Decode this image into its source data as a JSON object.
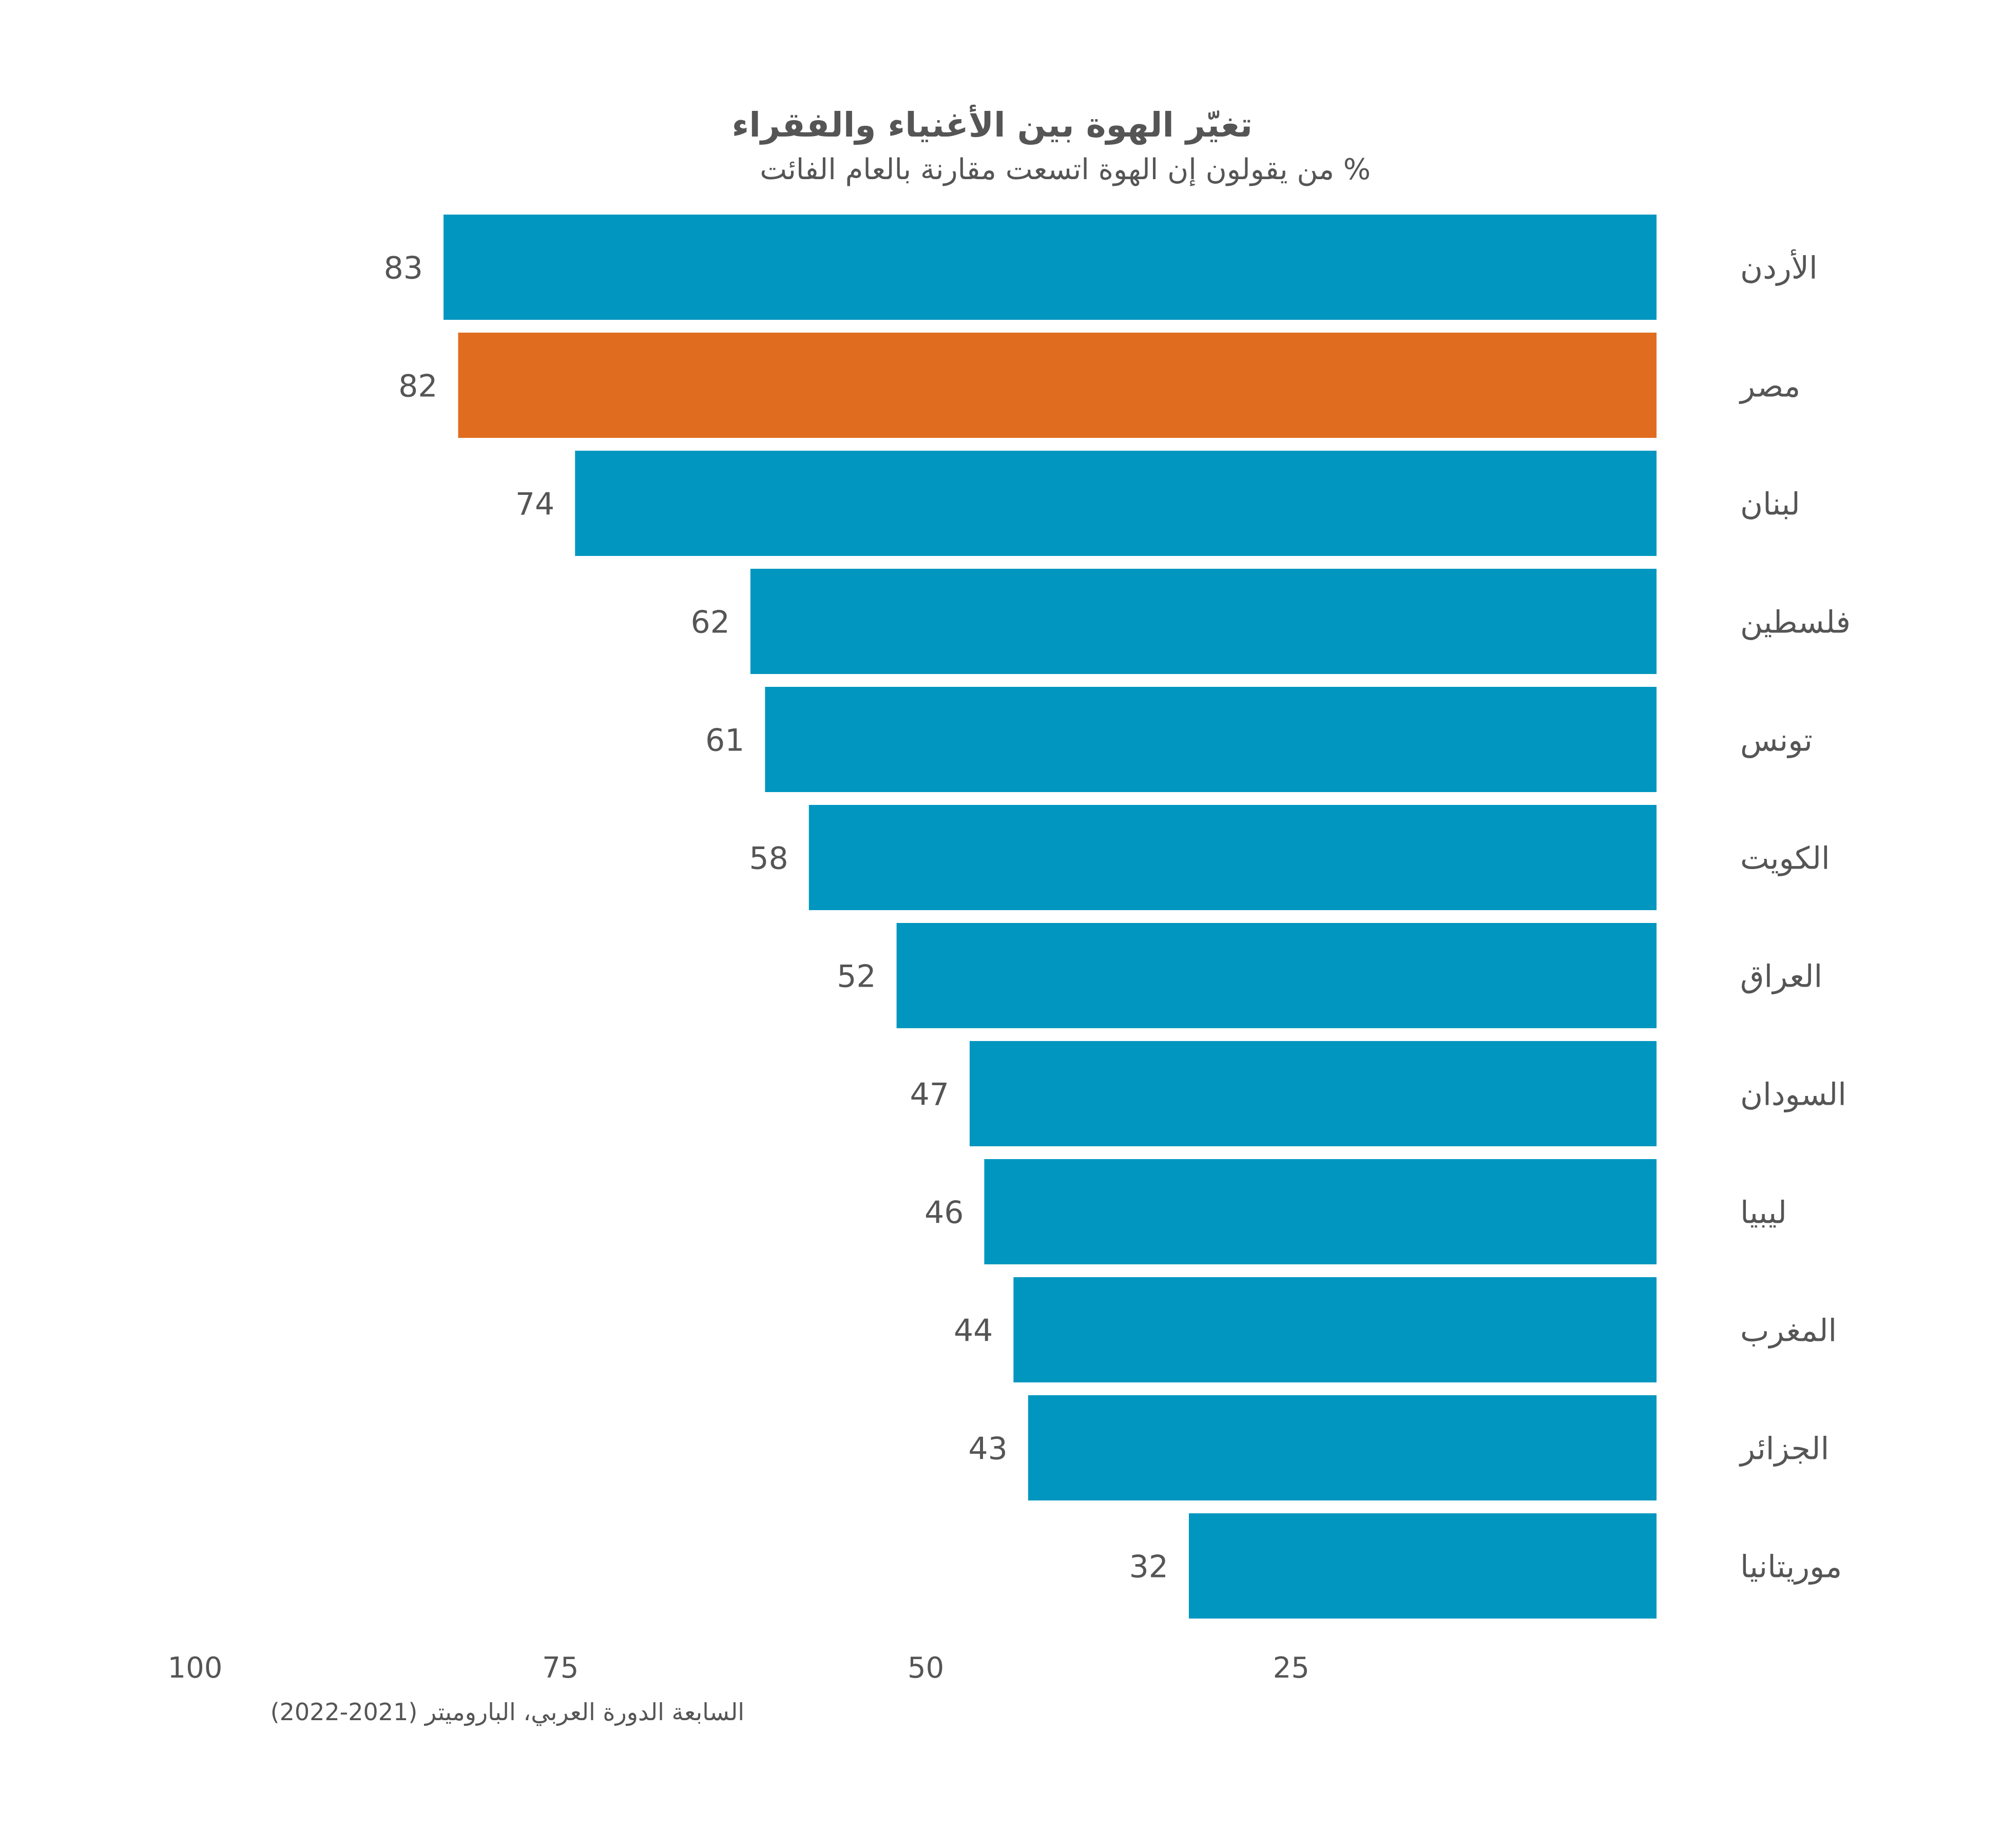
{
  "chart_data": {
    "type": "bar",
    "title": "تغيّر الهوة بين الأغنياء والفقراء",
    "subtitle": "% من يقولون إن الهوة اتسعت مقارنة بالعام الفائت",
    "source": "السابعة الدورة العربي، الباروميتر (2021-2022)",
    "categories": [
      "الأردن",
      "مصر",
      "لبنان",
      "فلسطين",
      "تونس",
      "الكويت",
      "العراق",
      "السودان",
      "ليبيا",
      "المغرب",
      "الجزائر",
      "موريتانيا"
    ],
    "values": [
      83,
      82,
      74,
      62,
      61,
      58,
      52,
      47,
      46,
      44,
      43,
      32
    ],
    "highlight_category": "مصر",
    "xlim": [
      0,
      100
    ],
    "x_reversed": true,
    "x_ticks": [
      100,
      75,
      50,
      25
    ],
    "grid": false,
    "legend": "none",
    "colors": {
      "bar": "#0096BF",
      "highlight": "#E06D1F",
      "text": "#555555"
    }
  }
}
